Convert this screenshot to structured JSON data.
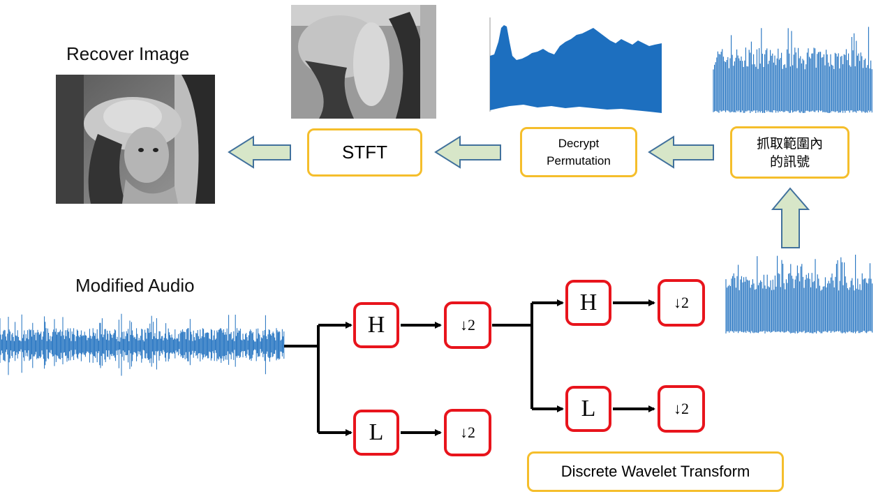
{
  "labels": {
    "recover_image": "Recover Image",
    "modified_audio": "Modified Audio"
  },
  "boxes": {
    "stft": "STFT",
    "decrypt": "Decrypt\nPermutation",
    "extract": "抓取範圍內\n的訊號",
    "dwt": "Discrete Wavelet Transform"
  },
  "filters": {
    "high": "H",
    "low": "L",
    "downsample": "↓2"
  },
  "colors": {
    "signal_blue": "#1D6FBF",
    "arrow_fill": "#D7E6C8",
    "arrow_stroke": "#41719C",
    "yellow_border": "#F5BE2B",
    "red_border": "#E8141C"
  }
}
